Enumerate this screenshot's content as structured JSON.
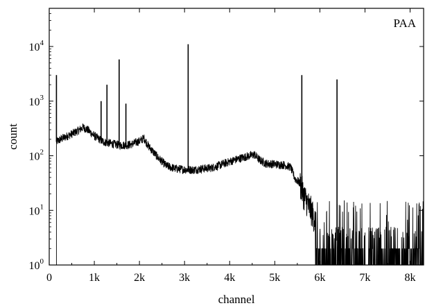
{
  "chart_data": {
    "type": "line",
    "xlabel": "channel",
    "ylabel": "count",
    "annotation": "PAA",
    "y_scale": "log",
    "xlim": [
      0,
      8300
    ],
    "ylim": [
      1,
      50000
    ],
    "x_ticks": [
      {
        "value": 0,
        "label": "0"
      },
      {
        "value": 1000,
        "label": "1k"
      },
      {
        "value": 2000,
        "label": "2k"
      },
      {
        "value": 3000,
        "label": "3k"
      },
      {
        "value": 4000,
        "label": "4k"
      },
      {
        "value": 5000,
        "label": "5k"
      },
      {
        "value": 6000,
        "label": "6k"
      },
      {
        "value": 7000,
        "label": "7k"
      },
      {
        "value": 8000,
        "label": "8k"
      }
    ],
    "y_ticks": [
      {
        "value": 1,
        "base": "10",
        "exp": "0"
      },
      {
        "value": 10,
        "base": "10",
        "exp": "1"
      },
      {
        "value": 100,
        "base": "10",
        "exp": "2"
      },
      {
        "value": 1000,
        "base": "10",
        "exp": "3"
      },
      {
        "value": 10000,
        "base": "10",
        "exp": "4"
      }
    ],
    "series": [
      {
        "color": "#000000",
        "continuum": [
          [
            100,
            0
          ],
          [
            160,
            180
          ],
          [
            300,
            210
          ],
          [
            500,
            250
          ],
          [
            650,
            290
          ],
          [
            750,
            330
          ],
          [
            850,
            300
          ],
          [
            1000,
            230
          ],
          [
            1200,
            180
          ],
          [
            1400,
            165
          ],
          [
            1600,
            155
          ],
          [
            1800,
            160
          ],
          [
            2000,
            185
          ],
          [
            2100,
            210
          ],
          [
            2200,
            150
          ],
          [
            2400,
            95
          ],
          [
            2600,
            65
          ],
          [
            2800,
            58
          ],
          [
            3000,
            56
          ],
          [
            3200,
            55
          ],
          [
            3400,
            58
          ],
          [
            3600,
            60
          ],
          [
            3800,
            68
          ],
          [
            4000,
            78
          ],
          [
            4200,
            88
          ],
          [
            4400,
            98
          ],
          [
            4550,
            105
          ],
          [
            4650,
            85
          ],
          [
            4800,
            72
          ],
          [
            5000,
            70
          ],
          [
            5200,
            68
          ],
          [
            5350,
            62
          ],
          [
            5450,
            38
          ],
          [
            5550,
            32
          ],
          [
            5650,
            18
          ],
          [
            5800,
            10
          ],
          [
            5950,
            5
          ],
          [
            6100,
            4
          ],
          [
            6300,
            3
          ],
          [
            6500,
            2.5
          ],
          [
            7000,
            2.5
          ],
          [
            7500,
            2.5
          ],
          [
            8000,
            2.5
          ],
          [
            8300,
            2.5
          ]
        ],
        "peaks": [
          {
            "x": 160,
            "y": 3000
          },
          {
            "x": 1150,
            "y": 1000
          },
          {
            "x": 1280,
            "y": 2000
          },
          {
            "x": 1550,
            "y": 5800
          },
          {
            "x": 1700,
            "y": 900
          },
          {
            "x": 3080,
            "y": 11000
          },
          {
            "x": 5600,
            "y": 3000
          },
          {
            "x": 6380,
            "y": 2500
          }
        ]
      }
    ]
  }
}
